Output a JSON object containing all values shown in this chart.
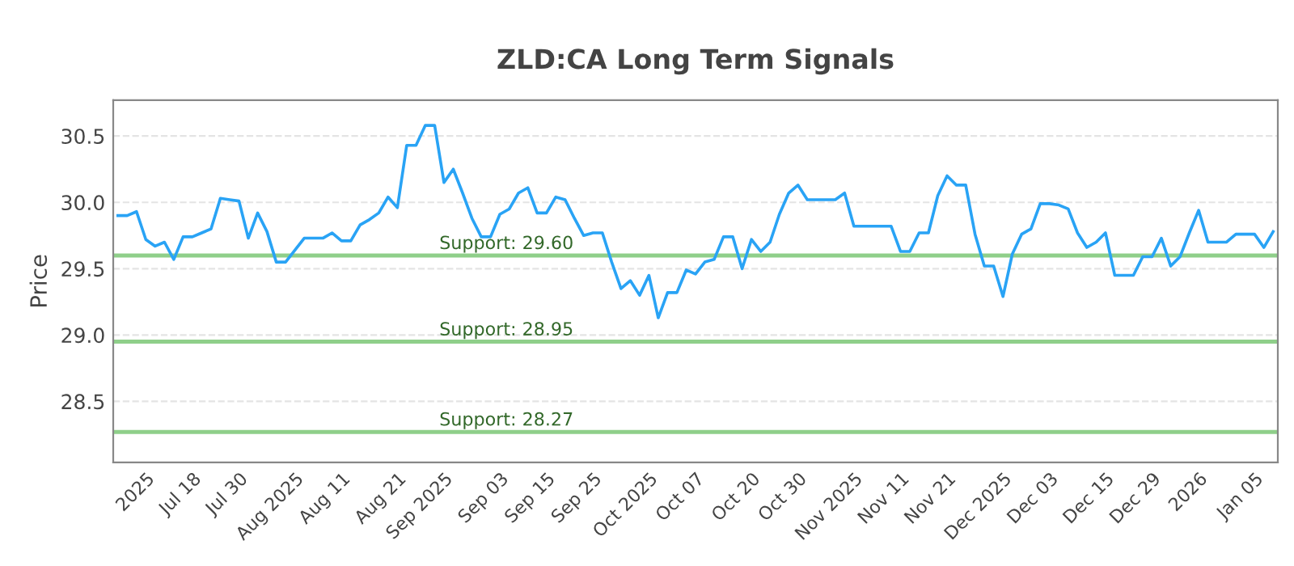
{
  "chart_data": {
    "type": "line",
    "title": "ZLD:CA Long Term Signals",
    "ylabel": "Price",
    "categories": [
      null,
      null,
      null,
      "2025",
      null,
      null,
      null,
      null,
      "Jul 18",
      null,
      null,
      null,
      null,
      "Jul 30",
      null,
      null,
      null,
      null,
      null,
      "Aug 2025",
      null,
      null,
      null,
      null,
      "Aug 11",
      null,
      null,
      null,
      null,
      null,
      "Aug 21",
      null,
      null,
      null,
      null,
      "Sep 2025",
      null,
      null,
      null,
      null,
      null,
      "Sep 03",
      null,
      null,
      null,
      null,
      "Sep 15",
      null,
      null,
      null,
      null,
      "Sep 25",
      null,
      null,
      null,
      null,
      null,
      "Oct 2025",
      null,
      null,
      null,
      null,
      "Oct 07",
      null,
      null,
      null,
      null,
      null,
      "Oct 20",
      null,
      null,
      null,
      null,
      "Oct 30",
      null,
      null,
      null,
      null,
      null,
      "Nov 2025",
      null,
      null,
      null,
      null,
      "Nov 11",
      null,
      null,
      null,
      null,
      "Nov 21",
      null,
      null,
      null,
      null,
      null,
      "Dec 2025",
      null,
      null,
      null,
      null,
      "Dec 03",
      null,
      null,
      null,
      null,
      null,
      "Dec 15",
      null,
      null,
      null,
      null,
      "Dec 29",
      null,
      null,
      null,
      null,
      "2026",
      null,
      null,
      null,
      null,
      null,
      "Jan 05",
      null,
      null
    ],
    "series": [
      {
        "color": "#29a3f5",
        "values": [
          29.9,
          29.9,
          29.93,
          29.72,
          29.67,
          29.7,
          29.57,
          29.74,
          29.74,
          29.77,
          29.8,
          30.03,
          30.02,
          30.01,
          29.73,
          29.92,
          29.78,
          29.55,
          29.55,
          29.64,
          29.73,
          29.73,
          29.73,
          29.77,
          29.71,
          29.71,
          29.83,
          29.87,
          29.92,
          30.04,
          29.96,
          30.43,
          30.43,
          30.58,
          30.58,
          30.15,
          30.25,
          30.07,
          29.88,
          29.74,
          29.74,
          29.91,
          29.95,
          30.07,
          30.11,
          29.92,
          29.92,
          30.04,
          30.02,
          29.88,
          29.75,
          29.77,
          29.77,
          29.55,
          29.35,
          29.41,
          29.3,
          29.45,
          29.13,
          29.32,
          29.32,
          29.49,
          29.46,
          29.55,
          29.57,
          29.74,
          29.74,
          29.5,
          29.72,
          29.63,
          29.7,
          29.91,
          30.07,
          30.13,
          30.02,
          30.02,
          30.02,
          30.02,
          30.07,
          29.82,
          29.82,
          29.82,
          29.82,
          29.82,
          29.63,
          29.63,
          29.77,
          29.77,
          30.05,
          30.2,
          30.13,
          30.13,
          29.76,
          29.52,
          29.52,
          29.29,
          29.61,
          29.76,
          29.8,
          29.99,
          29.99,
          29.98,
          29.95,
          29.77,
          29.66,
          29.7,
          29.77,
          29.45,
          29.45,
          29.45,
          29.59,
          29.59,
          29.73,
          29.52,
          29.59,
          29.77,
          29.94,
          29.7,
          29.7,
          29.7,
          29.76,
          29.76,
          29.76,
          29.66,
          29.78
        ]
      }
    ],
    "ylim": [
      28.04,
      30.77
    ],
    "yticks": [
      {
        "value": 28.5,
        "label": "28.5"
      },
      {
        "value": 29.0,
        "label": "29.0"
      },
      {
        "value": 29.5,
        "label": "29.5"
      },
      {
        "value": 30.0,
        "label": "30.0"
      },
      {
        "value": 30.5,
        "label": "30.5"
      }
    ],
    "grid": "y",
    "legend": false,
    "marker": "none",
    "line_style": "solid",
    "ref_lines": [
      {
        "axis": "y",
        "value": 29.6,
        "label": "Support: 29.60",
        "color": "#8fcf8a"
      },
      {
        "axis": "y",
        "value": 28.95,
        "label": "Support: 28.95",
        "color": "#8fcf8a"
      },
      {
        "axis": "y",
        "value": 28.27,
        "label": "Support: 28.27",
        "color": "#8fcf8a"
      }
    ]
  }
}
